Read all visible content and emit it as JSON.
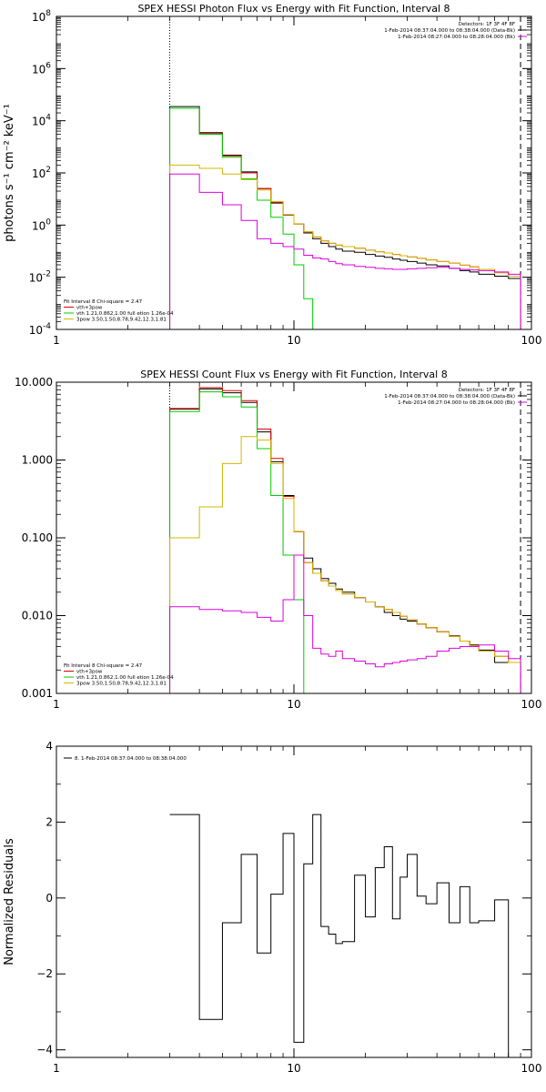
{
  "chart_data": [
    {
      "type": "line",
      "title": "SPEX HESSI Photon Flux vs Energy with Fit Function, Interval 8",
      "xlabel": "",
      "ylabel": "photons s⁻¹ cm⁻² keV⁻¹",
      "xscale": "log",
      "yscale": "log",
      "xlim": [
        1,
        100
      ],
      "ylim": [
        0.0001,
        100000000
      ],
      "xticks": [
        {
          "v": 1,
          "label": "1"
        },
        {
          "v": 10,
          "label": "10"
        },
        {
          "v": 100,
          "label": "100"
        }
      ],
      "yticks": [
        {
          "v": 0.0001,
          "b": "10",
          "e": "-4"
        },
        {
          "v": 0.01,
          "b": "10",
          "e": "-2"
        },
        {
          "v": 1,
          "b": "10",
          "e": "0"
        },
        {
          "v": 100,
          "b": "10",
          "e": "2"
        },
        {
          "v": 10000,
          "b": "10",
          "e": "4"
        },
        {
          "v": 1000000,
          "b": "10",
          "e": "6"
        },
        {
          "v": 100000000,
          "b": "10",
          "e": "8"
        }
      ],
      "vlines": [
        {
          "x": 3.0,
          "style": "dotted"
        },
        {
          "x": 90,
          "style": "dashed"
        }
      ],
      "legend_tr": [
        "Detectors: 1F 3F 4F 8F",
        "1-Feb-2014 08:37:04.000 to 08:38:04.000 (Data-Bk)",
        "1-Feb-2014 08:27:04.000 to 08:28:04.000 (Bk)"
      ],
      "legend_bl": [
        "Fit Interval 8   Chi-square = 2.47",
        "vth+3pow",
        "vth 1.21,0.862,1.00  full etion 1.26e-04",
        "3pow 3.50,1.50,8.78,9.42,12.3,1.81"
      ],
      "edges": [
        3,
        4,
        5,
        6,
        7,
        8,
        9,
        10,
        11,
        12,
        13,
        14,
        15,
        16,
        18,
        20,
        22,
        24,
        26,
        28,
        30,
        33,
        36,
        40,
        45,
        50,
        55,
        60,
        70,
        80,
        90
      ],
      "series": [
        {
          "name": "Data-Bk",
          "color": "#000000",
          "values": [
            35000,
            3500,
            480,
            110,
            25,
            7,
            2.4,
            1.1,
            0.5,
            0.3,
            0.2,
            0.15,
            0.12,
            0.1,
            0.09,
            0.075,
            0.065,
            0.058,
            0.05,
            0.045,
            0.04,
            0.035,
            0.03,
            0.027,
            0.022,
            0.018,
            0.016,
            0.013,
            0.011,
            0.009
          ]
        },
        {
          "name": "vth+3pow",
          "color": "#e00000",
          "values": [
            30000,
            3200,
            450,
            100,
            25,
            7.5,
            2.5,
            1.1,
            0.55,
            0.35,
            0.25,
            0.2,
            0.17,
            0.15,
            0.13,
            0.11,
            0.095,
            0.085,
            0.075,
            0.067,
            0.06,
            0.053,
            0.046,
            0.04,
            0.035,
            0.029,
            0.025,
            0.02,
            0.015,
            0.011
          ]
        },
        {
          "name": "vth",
          "color": "#00cc00",
          "values": [
            30000,
            3000,
            400,
            60,
            9,
            2,
            0.45,
            0.03,
            0.0015,
            0.0001
          ]
        },
        {
          "name": "3pow",
          "color": "#d4b800",
          "values": [
            200,
            150,
            90,
            55,
            22,
            8,
            2.5,
            1.1,
            0.55,
            0.35,
            0.25,
            0.2,
            0.17,
            0.15,
            0.13,
            0.11,
            0.095,
            0.085,
            0.075,
            0.067,
            0.06,
            0.053,
            0.046,
            0.04,
            0.035,
            0.029,
            0.025,
            0.02,
            0.015,
            0.011
          ]
        },
        {
          "name": "Bk",
          "color": "#dd00dd",
          "values": [
            90,
            18,
            6,
            1.5,
            0.3,
            0.2,
            0.15,
            0.12,
            0.07,
            0.055,
            0.05,
            0.04,
            0.033,
            0.03,
            0.026,
            0.024,
            0.022,
            0.021,
            0.02,
            0.02,
            0.021,
            0.022,
            0.023,
            0.024,
            0.022,
            0.02,
            0.019,
            0.018,
            0.016,
            0.013
          ]
        }
      ]
    },
    {
      "type": "line",
      "title": "SPEX HESSI Count Flux vs Energy with Fit Function, Interval 8",
      "xlabel": "",
      "ylabel": "",
      "xscale": "log",
      "yscale": "log",
      "xlim": [
        1,
        100
      ],
      "ylim": [
        0.001,
        10
      ],
      "xticks": [
        {
          "v": 1,
          "label": "1"
        },
        {
          "v": 10,
          "label": "10"
        },
        {
          "v": 100,
          "label": "100"
        }
      ],
      "yticks": [
        {
          "v": 0.001,
          "label": "0.001"
        },
        {
          "v": 0.01,
          "label": "0.010"
        },
        {
          "v": 0.1,
          "label": "0.100"
        },
        {
          "v": 1,
          "label": "1.000"
        },
        {
          "v": 10,
          "label": "10.000"
        }
      ],
      "vlines": [
        {
          "x": 3.0,
          "style": "dotted"
        },
        {
          "x": 90,
          "style": "dashed"
        }
      ],
      "legend_tr": [
        "Detectors: 1F 3F 4F 8F",
        "1-Feb-2014 08:37:04.000 to 08:38:04.000 (Data-Bk)",
        "1-Feb-2014 08:27:04.000 to 08:28:04.000 (Bk)"
      ],
      "legend_bl": [
        "Fit Interval 8   Chi-square = 2.47",
        "vth+3pow",
        "vth 1.21,0.862,1.00  full etion 1.26e-04",
        "3pow 3.50,1.50,8.78,9.42,12.3,1.81"
      ],
      "edges": [
        3,
        4,
        5,
        6,
        7,
        8,
        9,
        10,
        11,
        12,
        13,
        14,
        15,
        16,
        18,
        20,
        22,
        24,
        26,
        28,
        30,
        33,
        36,
        40,
        45,
        50,
        55,
        60,
        70,
        80,
        90
      ],
      "series": [
        {
          "name": "Data-Bk",
          "color": "#000000",
          "values": [
            4.5,
            8.2,
            7.3,
            5.5,
            2.3,
            0.95,
            0.35,
            0.12,
            0.055,
            0.04,
            0.03,
            0.026,
            0.022,
            0.02,
            0.017,
            0.015,
            0.013,
            0.011,
            0.01,
            0.009,
            0.0085,
            0.0078,
            0.007,
            0.0062,
            0.0055,
            0.0047,
            0.0042,
            0.0036,
            0.0025,
            0.0025
          ]
        },
        {
          "name": "vth+3pow",
          "color": "#e00000",
          "values": [
            4.6,
            8.5,
            7.8,
            5.8,
            2.5,
            1.05,
            0.34,
            0.12,
            0.048,
            0.035,
            0.028,
            0.024,
            0.021,
            0.019,
            0.017,
            0.015,
            0.013,
            0.012,
            0.011,
            0.0098,
            0.0088,
            0.0078,
            0.007,
            0.0062,
            0.0054,
            0.0047,
            0.0041,
            0.0035,
            0.003,
            0.0025
          ]
        },
        {
          "name": "vth",
          "color": "#00cc00",
          "values": [
            4.2,
            7.5,
            6.5,
            4.8,
            1.4,
            0.35,
            0.06,
            0.016,
            0.001,
            0.001
          ]
        },
        {
          "name": "3pow",
          "color": "#d4b800",
          "values": [
            0.1,
            0.25,
            0.9,
            2.0,
            1.8,
            0.9,
            0.32,
            0.12,
            0.048,
            0.035,
            0.028,
            0.024,
            0.021,
            0.019,
            0.017,
            0.015,
            0.013,
            0.012,
            0.011,
            0.0098,
            0.0088,
            0.0078,
            0.007,
            0.0062,
            0.0054,
            0.0047,
            0.0041,
            0.0035,
            0.003,
            0.0025
          ]
        },
        {
          "name": "Bk",
          "color": "#dd00dd",
          "values": [
            0.013,
            0.012,
            0.0115,
            0.011,
            0.0095,
            0.0085,
            0.016,
            0.06,
            0.01,
            0.0038,
            0.0032,
            0.003,
            0.0035,
            0.0028,
            0.0026,
            0.0024,
            0.0022,
            0.0024,
            0.0025,
            0.0026,
            0.0027,
            0.0028,
            0.003,
            0.0035,
            0.0038,
            0.004,
            0.004,
            0.0042,
            0.0035,
            0.0028
          ]
        }
      ]
    },
    {
      "type": "line",
      "title": "",
      "xlabel": "",
      "ylabel": "Normalized Residuals",
      "xscale": "log",
      "yscale": "linear",
      "xlim": [
        1,
        100
      ],
      "ylim": [
        -4.2,
        4
      ],
      "xticks": [
        {
          "v": 1,
          "label": "1"
        },
        {
          "v": 10,
          "label": "10"
        },
        {
          "v": 100,
          "label": "100"
        }
      ],
      "yticks": [
        {
          "v": -4,
          "label": "−4"
        },
        {
          "v": -2,
          "label": "−2"
        },
        {
          "v": 0,
          "label": "0"
        },
        {
          "v": 2,
          "label": "2"
        },
        {
          "v": 4,
          "label": "4"
        }
      ],
      "legend_tl": [
        "8.  1-Feb-2014 08:37:04.000 to 08:38:04.000"
      ],
      "edges": [
        3,
        4,
        5,
        6,
        7,
        8,
        9,
        10,
        11,
        12,
        13,
        14,
        15,
        16,
        18,
        20,
        22,
        24,
        26,
        28,
        30,
        33,
        36,
        40,
        45,
        50,
        55,
        60,
        70,
        80,
        90
      ],
      "series": [
        {
          "name": "",
          "color": "#000000",
          "values": [
            2.2,
            -3.2,
            -0.65,
            1.15,
            -1.45,
            0.1,
            1.7,
            -3.8,
            0.9,
            2.2,
            -0.75,
            -0.95,
            -1.2,
            -1.15,
            0.6,
            -0.5,
            0.8,
            1.35,
            -0.55,
            0.55,
            1.15,
            0.05,
            -0.15,
            0.4,
            -0.65,
            0.3,
            -0.65,
            -0.6,
            -0.05,
            -4.2
          ]
        }
      ]
    }
  ]
}
